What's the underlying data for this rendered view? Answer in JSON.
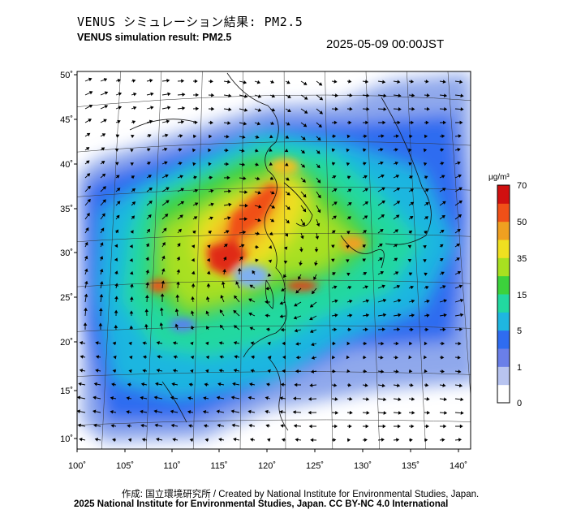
{
  "title_jp": "VENUS シミュレーション結果: PM2.5",
  "title_en": "VENUS simulation result: PM2.5",
  "datetime": "2025-05-09 00:00JST",
  "lat_labels": [
    "50˚",
    "45˚",
    "40˚",
    "35˚",
    "30˚",
    "25˚",
    "20˚",
    "15˚",
    "10˚"
  ],
  "lon_labels": [
    "100˚",
    "105˚",
    "110˚",
    "115˚",
    "120˚",
    "125˚",
    "130˚",
    "135˚",
    "140˚"
  ],
  "colorbar": {
    "unit": "μg/m³",
    "ticks": [
      "70",
      "50",
      "35",
      "15",
      "5",
      "1",
      "0"
    ],
    "colors": [
      "#ffffff",
      "#b8c4f0",
      "#6a7fe8",
      "#2f6cf0",
      "#1fb6e0",
      "#22d8a0",
      "#3cd23c",
      "#a8e020",
      "#f0e020",
      "#f0a020",
      "#f05018",
      "#d01010"
    ]
  },
  "credit_line1": "作成: 国立環境研究所 / Created by National Institute for Environmental Studies, Japan.",
  "credit_line2": "2025 National Institute for Environmental Studies, Japan. CC BY-NC 4.0 International"
}
